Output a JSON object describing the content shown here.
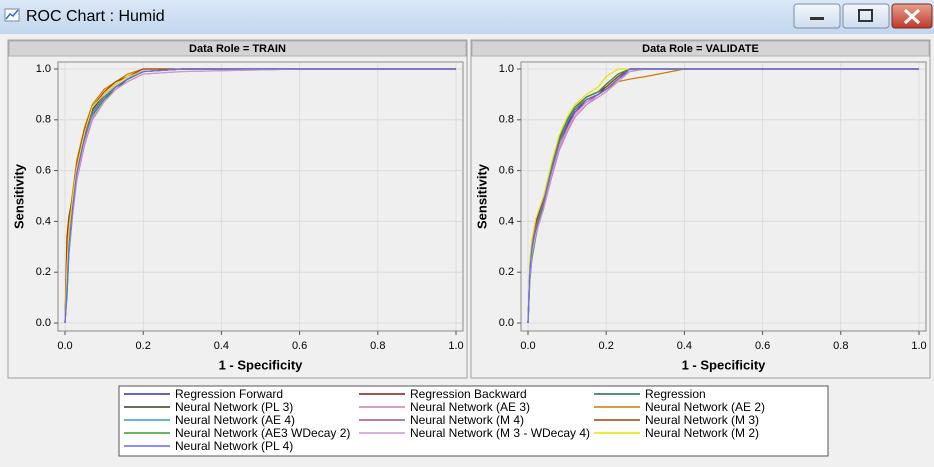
{
  "window": {
    "title": "ROC Chart : Humid"
  },
  "chart_data": [
    {
      "type": "line",
      "title": "Data Role = TRAIN",
      "x_label": "1 - Specificity",
      "y_label": "Sensitivity",
      "xlim": [
        0,
        1
      ],
      "ylim": [
        0,
        1
      ],
      "xticks": [
        {
          "value": 0,
          "label": "0.0"
        },
        0.2,
        0.4,
        0.6,
        0.8,
        {
          "value": 1,
          "label": "1.0"
        }
      ],
      "yticks": [
        {
          "value": 0,
          "label": "0.0"
        },
        0.2,
        0.4,
        0.6,
        0.8,
        {
          "value": 1,
          "label": "1.0"
        }
      ],
      "grid": true,
      "x": [
        0,
        0.005,
        0.01,
        0.02,
        0.03,
        0.05,
        0.07,
        0.1,
        0.13,
        0.16,
        0.2,
        0.3,
        0.6,
        1.0
      ],
      "series": [
        {
          "name": "Regression Forward",
          "color": "#2e2eb8",
          "values": [
            0,
            0.14,
            0.3,
            0.45,
            0.58,
            0.72,
            0.82,
            0.88,
            0.93,
            0.96,
            0.99,
            1,
            1,
            1
          ]
        },
        {
          "name": "Regression Backward",
          "color": "#8b1a1a",
          "values": [
            0,
            0.15,
            0.31,
            0.46,
            0.59,
            0.72,
            0.83,
            0.89,
            0.93,
            0.96,
            0.99,
            1,
            1,
            1
          ]
        },
        {
          "name": "Regression",
          "color": "#1a6b5a",
          "values": [
            0,
            0.13,
            0.29,
            0.44,
            0.57,
            0.71,
            0.82,
            0.88,
            0.92,
            0.96,
            0.99,
            1,
            1,
            1
          ]
        },
        {
          "name": "Neural Network (PL 3)",
          "color": "#3d3d1a",
          "values": [
            0,
            0.18,
            0.33,
            0.48,
            0.6,
            0.74,
            0.84,
            0.9,
            0.94,
            0.97,
            0.99,
            1,
            1,
            1
          ]
        },
        {
          "name": "Neural Network (AE 3)",
          "color": "#c080c0",
          "values": [
            0,
            0.12,
            0.28,
            0.43,
            0.56,
            0.7,
            0.8,
            0.87,
            0.92,
            0.95,
            0.98,
            0.99,
            1,
            1
          ]
        },
        {
          "name": "Neural Network (AE 2)",
          "color": "#cc7a00",
          "values": [
            0,
            0.3,
            0.4,
            0.52,
            0.64,
            0.77,
            0.86,
            0.92,
            0.95,
            0.98,
            1,
            1,
            1,
            1
          ]
        },
        {
          "name": "Neural Network (AE 4)",
          "color": "#3399cc",
          "values": [
            0,
            0.1,
            0.27,
            0.44,
            0.57,
            0.71,
            0.81,
            0.88,
            0.93,
            0.96,
            0.99,
            1,
            1,
            1
          ]
        },
        {
          "name": "Neural Network (M 4)",
          "color": "#a0528c",
          "values": [
            0,
            0.16,
            0.32,
            0.47,
            0.59,
            0.73,
            0.83,
            0.89,
            0.93,
            0.96,
            0.99,
            1,
            1,
            1
          ]
        },
        {
          "name": "Neural Network (M 3)",
          "color": "#a04000",
          "values": [
            0,
            0.34,
            0.42,
            0.5,
            0.62,
            0.76,
            0.85,
            0.91,
            0.95,
            0.97,
            1,
            1,
            1,
            1
          ]
        },
        {
          "name": "Neural Network (AE3 WDecay 2)",
          "color": "#33a02c",
          "values": [
            0,
            0.11,
            0.28,
            0.45,
            0.58,
            0.72,
            0.82,
            0.88,
            0.93,
            0.96,
            0.99,
            1,
            1,
            1
          ]
        },
        {
          "name": "Neural Network (M 3 - WDecay 4)",
          "color": "#cc99cc",
          "values": [
            0,
            0.14,
            0.29,
            0.44,
            0.57,
            0.71,
            0.81,
            0.87,
            0.92,
            0.95,
            0.98,
            0.99,
            1,
            1
          ]
        },
        {
          "name": "Neural Network (M 2)",
          "color": "#e6e600",
          "values": [
            0,
            0.22,
            0.36,
            0.5,
            0.61,
            0.75,
            0.85,
            0.9,
            0.94,
            0.97,
            0.99,
            1,
            1,
            1
          ]
        },
        {
          "name": "Neural Network (PL 4)",
          "color": "#6666ff",
          "values": [
            0,
            0.13,
            0.3,
            0.46,
            0.59,
            0.73,
            0.83,
            0.89,
            0.93,
            0.96,
            0.99,
            1,
            1,
            1
          ]
        }
      ]
    },
    {
      "type": "line",
      "title": "Data Role = VALIDATE",
      "x_label": "1 - Specificity",
      "y_label": "Sensitivity",
      "xlim": [
        0,
        1
      ],
      "ylim": [
        0,
        1
      ],
      "xticks": [
        {
          "value": 0,
          "label": "0.0"
        },
        0.2,
        0.4,
        0.6,
        0.8,
        {
          "value": 1,
          "label": "1.0"
        }
      ],
      "yticks": [
        {
          "value": 0,
          "label": "0.0"
        },
        0.2,
        0.4,
        0.6,
        0.8,
        {
          "value": 1,
          "label": "1.0"
        }
      ],
      "grid": true,
      "x": [
        0,
        0.005,
        0.01,
        0.02,
        0.04,
        0.06,
        0.08,
        0.1,
        0.12,
        0.15,
        0.18,
        0.2,
        0.23,
        0.26,
        0.3,
        0.4,
        0.6,
        1.0
      ],
      "series": [
        {
          "name": "Regression Forward",
          "color": "#2e2eb8",
          "values": [
            0,
            0.22,
            0.3,
            0.38,
            0.47,
            0.6,
            0.71,
            0.78,
            0.84,
            0.88,
            0.9,
            0.92,
            0.96,
            1,
            1,
            1,
            1,
            1
          ]
        },
        {
          "name": "Regression Backward",
          "color": "#8b1a1a",
          "values": [
            0,
            0.21,
            0.3,
            0.38,
            0.48,
            0.61,
            0.72,
            0.79,
            0.84,
            0.88,
            0.9,
            0.93,
            0.97,
            1,
            1,
            1,
            1,
            1
          ]
        },
        {
          "name": "Regression",
          "color": "#1a6b5a",
          "values": [
            0,
            0.2,
            0.29,
            0.37,
            0.47,
            0.6,
            0.71,
            0.78,
            0.83,
            0.88,
            0.9,
            0.92,
            0.96,
            1,
            1,
            1,
            1,
            1
          ]
        },
        {
          "name": "Neural Network (PL 3)",
          "color": "#3d3d1a",
          "values": [
            0,
            0.24,
            0.32,
            0.4,
            0.49,
            0.62,
            0.73,
            0.8,
            0.85,
            0.89,
            0.91,
            0.94,
            0.98,
            1,
            1,
            1,
            1,
            1
          ]
        },
        {
          "name": "Neural Network (AE 3)",
          "color": "#c080c0",
          "values": [
            0,
            0.18,
            0.27,
            0.35,
            0.45,
            0.57,
            0.68,
            0.75,
            0.81,
            0.86,
            0.89,
            0.91,
            0.95,
            0.99,
            1,
            1,
            1,
            1
          ]
        },
        {
          "name": "Neural Network (AE 2)",
          "color": "#cc7a00",
          "values": [
            0,
            0.2,
            0.29,
            0.37,
            0.47,
            0.6,
            0.71,
            0.79,
            0.85,
            0.88,
            0.9,
            0.92,
            0.95,
            0.96,
            0.97,
            1,
            1,
            1
          ]
        },
        {
          "name": "Neural Network (AE 4)",
          "color": "#3399cc",
          "values": [
            0,
            0.22,
            0.31,
            0.39,
            0.48,
            0.61,
            0.72,
            0.79,
            0.85,
            0.89,
            0.91,
            0.93,
            0.97,
            1,
            1,
            1,
            1,
            1
          ]
        },
        {
          "name": "Neural Network (M 4)",
          "color": "#a0528c",
          "values": [
            0,
            0.19,
            0.28,
            0.36,
            0.46,
            0.58,
            0.69,
            0.77,
            0.83,
            0.87,
            0.9,
            0.92,
            0.96,
            0.99,
            1,
            1,
            1,
            1
          ]
        },
        {
          "name": "Neural Network (M 3)",
          "color": "#a04000",
          "values": [
            0,
            0.23,
            0.31,
            0.39,
            0.49,
            0.62,
            0.72,
            0.8,
            0.85,
            0.89,
            0.91,
            0.93,
            0.97,
            1,
            1,
            1,
            1,
            1
          ]
        },
        {
          "name": "Neural Network (AE3 WDecay 2)",
          "color": "#33a02c",
          "values": [
            0,
            0.17,
            0.25,
            0.34,
            0.48,
            0.62,
            0.73,
            0.8,
            0.85,
            0.89,
            0.91,
            0.94,
            0.98,
            1,
            1,
            1,
            1,
            1
          ]
        },
        {
          "name": "Neural Network (M 3 - WDecay 4)",
          "color": "#cc99cc",
          "values": [
            0,
            0.18,
            0.27,
            0.35,
            0.45,
            0.58,
            0.69,
            0.76,
            0.82,
            0.87,
            0.89,
            0.91,
            0.95,
            0.99,
            1,
            1,
            1,
            1
          ]
        },
        {
          "name": "Neural Network (M 2)",
          "color": "#e6e600",
          "values": [
            0,
            0.25,
            0.33,
            0.41,
            0.5,
            0.63,
            0.74,
            0.81,
            0.86,
            0.9,
            0.93,
            0.97,
            1,
            1,
            1,
            1,
            1,
            1
          ]
        },
        {
          "name": "Neural Network (PL 4)",
          "color": "#6666ff",
          "values": [
            0,
            0.21,
            0.3,
            0.38,
            0.48,
            0.6,
            0.71,
            0.79,
            0.84,
            0.88,
            0.9,
            0.92,
            0.96,
            1,
            1,
            1,
            1,
            1
          ]
        }
      ]
    }
  ]
}
